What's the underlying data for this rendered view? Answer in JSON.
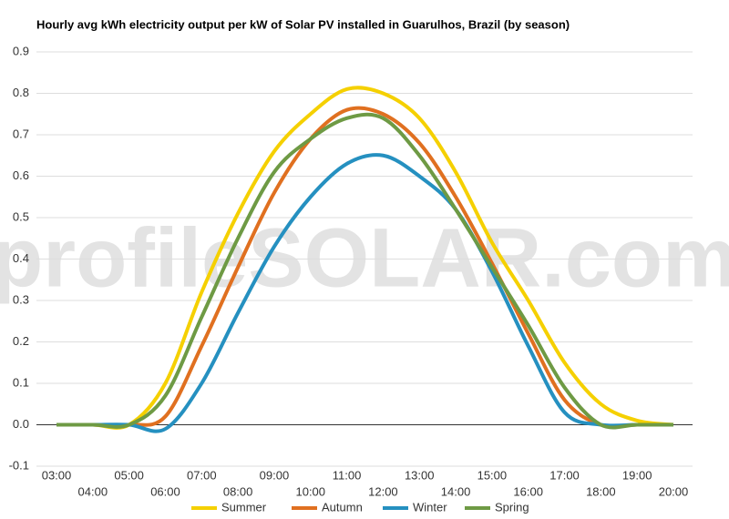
{
  "chart_data": {
    "type": "line",
    "title": "Hourly avg kWh electricity output per kW of Solar PV installed in Guarulhos, Brazil (by season)",
    "watermark": "profileSOLAR.com",
    "categories": [
      "03:00",
      "04:00",
      "05:00",
      "06:00",
      "07:00",
      "08:00",
      "09:00",
      "10:00",
      "11:00",
      "12:00",
      "13:00",
      "14:00",
      "15:00",
      "16:00",
      "17:00",
      "18:00",
      "19:00",
      "20:00"
    ],
    "series": [
      {
        "name": "Summer",
        "color": "#f5d000",
        "values": [
          0,
          0,
          0,
          0.1,
          0.32,
          0.51,
          0.66,
          0.75,
          0.81,
          0.8,
          0.74,
          0.61,
          0.44,
          0.3,
          0.15,
          0.05,
          0.01,
          0
        ]
      },
      {
        "name": "Autumn",
        "color": "#e07020",
        "values": [
          0,
          0,
          0,
          0.02,
          0.19,
          0.38,
          0.56,
          0.69,
          0.76,
          0.75,
          0.68,
          0.55,
          0.39,
          0.22,
          0.06,
          0,
          0,
          0
        ]
      },
      {
        "name": "Winter",
        "color": "#2590c0",
        "values": [
          0,
          0,
          0,
          -0.01,
          0.1,
          0.27,
          0.43,
          0.55,
          0.63,
          0.65,
          0.6,
          0.52,
          0.37,
          0.19,
          0.03,
          0,
          0,
          0
        ]
      },
      {
        "name": "Spring",
        "color": "#6e9a44",
        "values": [
          0,
          0,
          0,
          0.07,
          0.26,
          0.45,
          0.61,
          0.69,
          0.74,
          0.74,
          0.65,
          0.52,
          0.38,
          0.24,
          0.09,
          0,
          0,
          0
        ]
      }
    ],
    "ylim": [
      -0.1,
      0.9
    ],
    "yticks": [
      -0.1,
      {
        "value": 0,
        "label": "0.0"
      },
      0.1,
      0.2,
      0.3,
      0.4,
      0.5,
      0.6,
      0.7,
      0.8,
      0.9
    ],
    "grid": true,
    "legend": "bottom"
  }
}
